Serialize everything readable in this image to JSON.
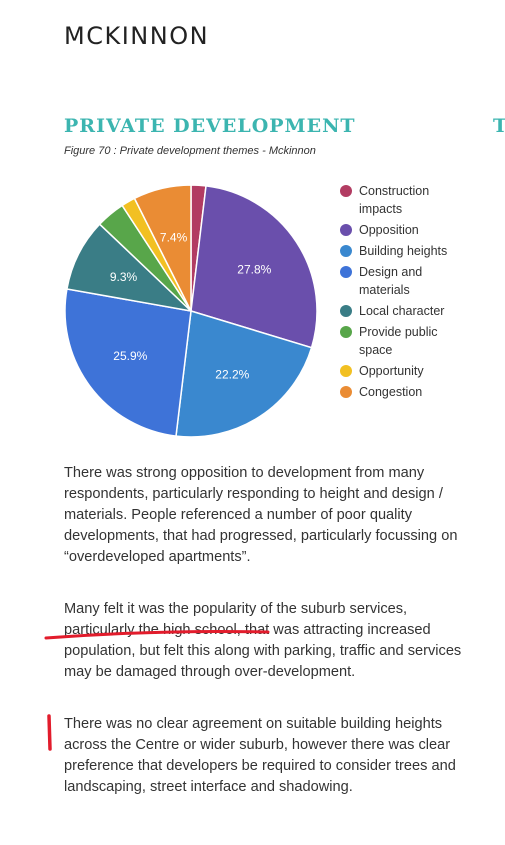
{
  "header": {
    "brand": "MCKINNON"
  },
  "section": {
    "title": "PRIVATE DEVELOPMENT",
    "next_title": "TO"
  },
  "figure": {
    "caption": "Figure 70 : Private development themes - Mckinnon"
  },
  "chart_data": {
    "type": "pie",
    "title": "",
    "start_angle_deg": 0,
    "slices": [
      {
        "label": "Construction impacts",
        "value": 1.9,
        "color": "#b23c62",
        "data_label": ""
      },
      {
        "label": "Opposition",
        "value": 27.8,
        "color": "#6a4fac",
        "data_label": "27.8%"
      },
      {
        "label": "Building heights",
        "value": 22.2,
        "color": "#3a88cf",
        "data_label": "22.2%"
      },
      {
        "label": "Design and materials",
        "value": 25.9,
        "color": "#3e73d8",
        "data_label": "25.9%"
      },
      {
        "label": "Local character",
        "value": 9.3,
        "color": "#3a7d86",
        "data_label": "9.3%"
      },
      {
        "label": "Provide public space",
        "value": 3.7,
        "color": "#58a64a",
        "data_label": ""
      },
      {
        "label": "Opportunity",
        "value": 1.8,
        "color": "#f2c022",
        "data_label": ""
      },
      {
        "label": "Congestion",
        "value": 7.4,
        "color": "#ea8c34",
        "data_label": "7.4%"
      }
    ],
    "legend_position": "right"
  },
  "legend": {
    "items": [
      {
        "label": "Construction impacts",
        "color": "#b23c62"
      },
      {
        "label": "Opposition",
        "color": "#6a4fac"
      },
      {
        "label": "Building heights",
        "color": "#3a88cf"
      },
      {
        "label": "Design and materials",
        "color": "#3e73d8"
      },
      {
        "label": "Local character",
        "color": "#3a7d86"
      },
      {
        "label": "Provide public space",
        "color": "#58a64a"
      },
      {
        "label": "Opportunity",
        "color": "#f2c022"
      },
      {
        "label": "Congestion",
        "color": "#ea8c34"
      }
    ]
  },
  "body": {
    "p1": "There was strong opposition to development from many respondents, particularly responding to height and design / materials.  People referenced a number of poor quality developments, that had progressed, particularly focussing on “overdeveloped apartments”.",
    "p2": "Many felt it was the popularity of the suburb services, particularly the high school, that was attracting increased population, but felt this along with parking, traffic and services may be damaged through over-development.",
    "p3": "There was no clear agreement on suitable building heights across the Centre or wider suburb, however there was clear preference that developers be required to consider trees and landscaping, street interface and shadowing."
  },
  "annotations": {
    "color": "#e21c2c"
  }
}
